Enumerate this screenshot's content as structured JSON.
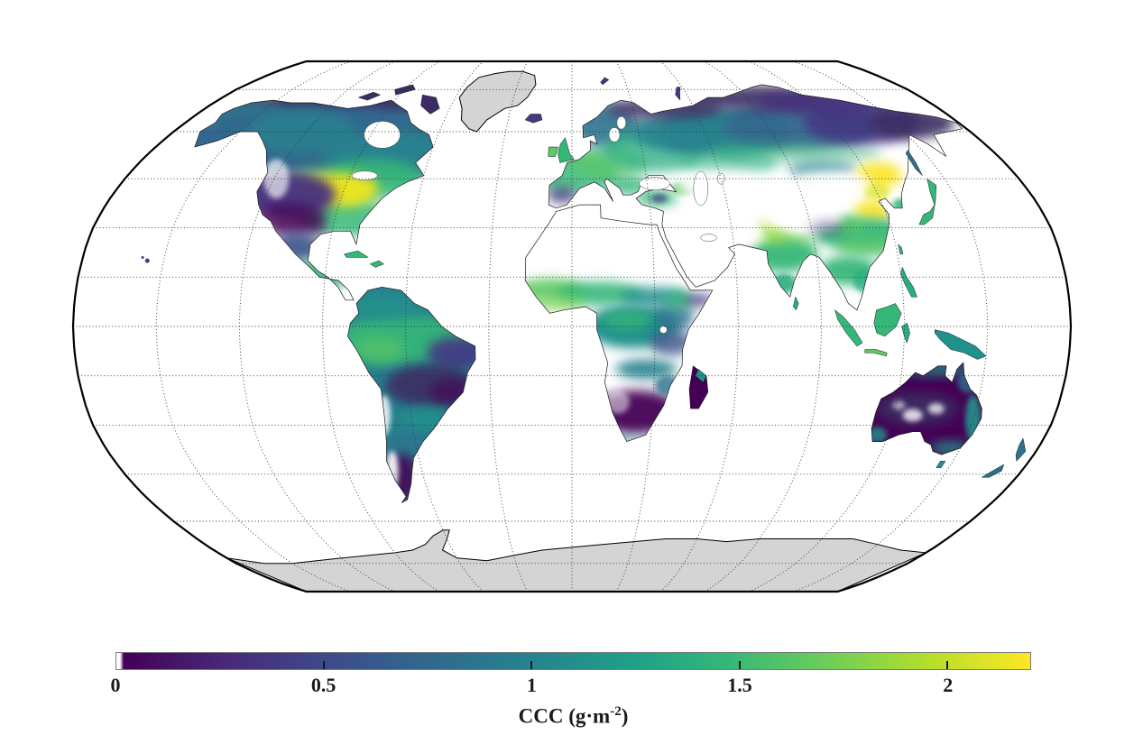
{
  "map": {
    "projection": "Robinson",
    "central_meridian_deg": 0,
    "graticule": {
      "parallel_step_deg": 15,
      "meridian_step_deg": 30,
      "line_style": "dotted",
      "color": "#333333"
    },
    "outline_color": "#000000",
    "ocean_color": "#ffffff",
    "coastline_color": "#1a1a1a",
    "no_data_land_color": "#d4d4d4",
    "no_data_regions": [
      "Greenland",
      "Antarctica"
    ],
    "masked_white_regions": [
      "Sahara",
      "Arabian Peninsula",
      "Iranian deserts",
      "Tibetan Plateau",
      "Gobi",
      "Australian interior patches",
      "Atacama/Patagonia strips",
      "Oceans"
    ]
  },
  "colorbar": {
    "label_full": "CCC (g·m⁻²)",
    "label_main": "CCC (g·m",
    "label_sup": "-2",
    "label_close": ")",
    "ticks": [
      "0",
      "0.5",
      "1",
      "1.5",
      "2"
    ],
    "tick_values": [
      0,
      0.5,
      1,
      1.5,
      2
    ],
    "vmin": 0,
    "vmax": 2.2,
    "colormap": "viridis",
    "colors": [
      "#440154",
      "#482878",
      "#3e4a89",
      "#31688e",
      "#26828e",
      "#1f9e89",
      "#35b779",
      "#6ece58",
      "#b5de2b",
      "#fde725"
    ],
    "zero_cap_color": "#ffffff",
    "border_color": "#7a7a7a",
    "tick_mark_color": "#1a1a1a",
    "text_color": "#1a1a1a"
  },
  "chart_data": {
    "type": "heatmap",
    "title": "",
    "variable": "CCC",
    "units": "g·m⁻²",
    "value_range": [
      0,
      2.2
    ],
    "colormap": "viridis",
    "projection": "Robinson",
    "legend_position": "bottom",
    "regions": [
      {
        "name": "US Corn Belt / Midwest",
        "ccc": 2.1
      },
      {
        "name": "Northeast China Plain",
        "ccc": 2.0
      },
      {
        "name": "North China Plain",
        "ccc": 1.9
      },
      {
        "name": "Western & Central Europe",
        "ccc": 1.3
      },
      {
        "name": "Amazon Basin",
        "ccc": 1.2
      },
      {
        "name": "Congo Basin",
        "ccc": 1.1
      },
      {
        "name": "Sahel belt",
        "ccc": 1.0
      },
      {
        "name": "India (Indo-Gangetic Plain)",
        "ccc": 1.4
      },
      {
        "name": "Southeast Asia / Indonesia",
        "ccc": 1.3
      },
      {
        "name": "Eastern US",
        "ccc": 1.2
      },
      {
        "name": "Boreal Canada",
        "ccc": 0.8
      },
      {
        "name": "Siberia (taiga)",
        "ccc": 0.7
      },
      {
        "name": "Eastern Siberia / tundra",
        "ccc": 0.2
      },
      {
        "name": "Western US drylands",
        "ccc": 0.2
      },
      {
        "name": "Eastern Brazil / Cerrado",
        "ccc": 0.3
      },
      {
        "name": "Southern Africa",
        "ccc": 0.3
      },
      {
        "name": "Australia interior",
        "ccc": 0.15
      },
      {
        "name": "Australia coastal fringe",
        "ccc": 0.8
      },
      {
        "name": "Deserts (Sahara, Arabia, Gobi, Tibet)",
        "ccc": null
      },
      {
        "name": "Greenland, Antarctica (no data)",
        "ccc": null
      }
    ]
  }
}
